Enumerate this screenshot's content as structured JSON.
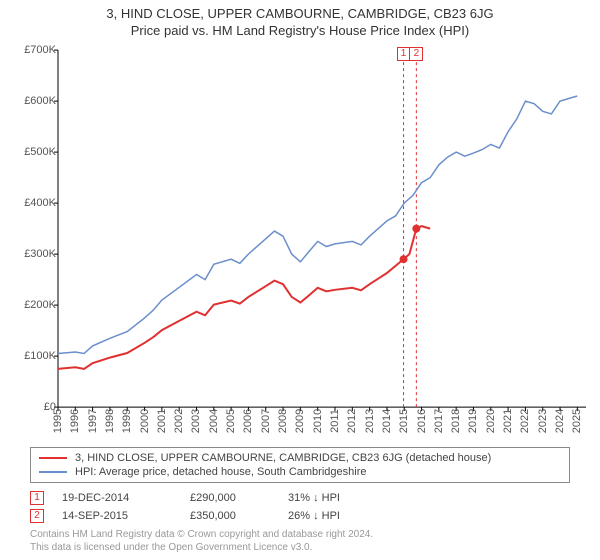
{
  "title_line1": "3, HIND CLOSE, UPPER CAMBOURNE, CAMBRIDGE, CB23 6JG",
  "title_line2": "Price paid vs. HM Land Registry's House Price Index (HPI)",
  "chart": {
    "type": "line",
    "x_years": [
      1995,
      1996,
      1997,
      1998,
      1999,
      2000,
      2001,
      2002,
      2003,
      2004,
      2005,
      2006,
      2007,
      2008,
      2009,
      2010,
      2011,
      2012,
      2013,
      2014,
      2015,
      2016,
      2017,
      2018,
      2019,
      2020,
      2021,
      2022,
      2023,
      2024,
      2025
    ],
    "xlim": [
      1995,
      2025.5
    ],
    "ylim": [
      0,
      700000
    ],
    "ytick_step": 100000,
    "ytick_labels": [
      "£0",
      "£100K",
      "£200K",
      "£300K",
      "£400K",
      "£500K",
      "£600K",
      "£700K"
    ],
    "background_color": "#ffffff",
    "axis_color": "#000000",
    "hpi_line": {
      "color": "#6a8fca",
      "width": 1.5,
      "points": [
        [
          1995,
          105000
        ],
        [
          1996,
          108000
        ],
        [
          1996.5,
          105000
        ],
        [
          1997,
          120000
        ],
        [
          1998,
          135000
        ],
        [
          1999,
          148000
        ],
        [
          2000,
          175000
        ],
        [
          2000.5,
          190000
        ],
        [
          2001,
          210000
        ],
        [
          2002,
          235000
        ],
        [
          2003,
          260000
        ],
        [
          2003.5,
          250000
        ],
        [
          2004,
          280000
        ],
        [
          2005,
          290000
        ],
        [
          2005.5,
          282000
        ],
        [
          2006,
          300000
        ],
        [
          2007,
          330000
        ],
        [
          2007.5,
          345000
        ],
        [
          2008,
          335000
        ],
        [
          2008.5,
          300000
        ],
        [
          2009,
          285000
        ],
        [
          2009.5,
          305000
        ],
        [
          2010,
          325000
        ],
        [
          2010.5,
          315000
        ],
        [
          2011,
          320000
        ],
        [
          2012,
          325000
        ],
        [
          2012.5,
          318000
        ],
        [
          2013,
          335000
        ],
        [
          2014,
          365000
        ],
        [
          2014.5,
          375000
        ],
        [
          2015,
          400000
        ],
        [
          2015.5,
          415000
        ],
        [
          2016,
          440000
        ],
        [
          2016.5,
          450000
        ],
        [
          2017,
          475000
        ],
        [
          2017.5,
          490000
        ],
        [
          2018,
          500000
        ],
        [
          2018.5,
          492000
        ],
        [
          2019,
          498000
        ],
        [
          2019.5,
          505000
        ],
        [
          2020,
          515000
        ],
        [
          2020.5,
          508000
        ],
        [
          2021,
          540000
        ],
        [
          2021.5,
          565000
        ],
        [
          2022,
          600000
        ],
        [
          2022.5,
          595000
        ],
        [
          2023,
          580000
        ],
        [
          2023.5,
          575000
        ],
        [
          2024,
          600000
        ],
        [
          2024.5,
          605000
        ],
        [
          2025,
          610000
        ]
      ]
    },
    "property_line": {
      "color": "#e03030",
      "width": 2,
      "points": [
        [
          1995,
          75000
        ],
        [
          1996,
          78000
        ],
        [
          1996.5,
          75000
        ],
        [
          1997,
          86000
        ],
        [
          1998,
          97000
        ],
        [
          1999,
          106000
        ],
        [
          2000,
          126000
        ],
        [
          2000.5,
          137000
        ],
        [
          2001,
          151000
        ],
        [
          2002,
          169000
        ],
        [
          2003,
          187000
        ],
        [
          2003.5,
          180000
        ],
        [
          2004,
          201000
        ],
        [
          2005,
          209000
        ],
        [
          2005.5,
          203000
        ],
        [
          2006,
          216000
        ],
        [
          2007,
          237000
        ],
        [
          2007.5,
          248000
        ],
        [
          2008,
          241000
        ],
        [
          2008.5,
          216000
        ],
        [
          2009,
          205000
        ],
        [
          2009.5,
          219000
        ],
        [
          2010,
          234000
        ],
        [
          2010.5,
          227000
        ],
        [
          2011,
          230000
        ],
        [
          2012,
          234000
        ],
        [
          2012.5,
          229000
        ],
        [
          2013,
          241000
        ],
        [
          2014,
          263000
        ],
        [
          2014.96,
          290000
        ],
        [
          2015.3,
          300000
        ],
        [
          2015.7,
          350000
        ],
        [
          2016,
          355000
        ],
        [
          2016.5,
          350000
        ]
      ]
    },
    "sale_markers": {
      "color": "#e03030",
      "radius": 4,
      "points": [
        [
          2014.96,
          290000
        ],
        [
          2015.7,
          350000
        ]
      ]
    },
    "vertical_markers": {
      "color": "#e03030",
      "dash": "3,3",
      "positions": [
        2014.96,
        2015.7
      ],
      "labels": [
        "1",
        "2"
      ]
    }
  },
  "legend": {
    "items": [
      {
        "color": "#e03030",
        "label": "3, HIND CLOSE, UPPER CAMBOURNE, CAMBRIDGE, CB23 6JG (detached house)"
      },
      {
        "color": "#6a8fca",
        "label": "HPI: Average price, detached house, South Cambridgeshire"
      }
    ]
  },
  "transactions": [
    {
      "n": "1",
      "date": "19-DEC-2014",
      "price": "£290,000",
      "delta": "31% ↓ HPI"
    },
    {
      "n": "2",
      "date": "14-SEP-2015",
      "price": "£350,000",
      "delta": "26% ↓ HPI"
    }
  ],
  "credits_line1": "Contains HM Land Registry data © Crown copyright and database right 2024.",
  "credits_line2": "This data is licensed under the Open Government Licence v3.0."
}
